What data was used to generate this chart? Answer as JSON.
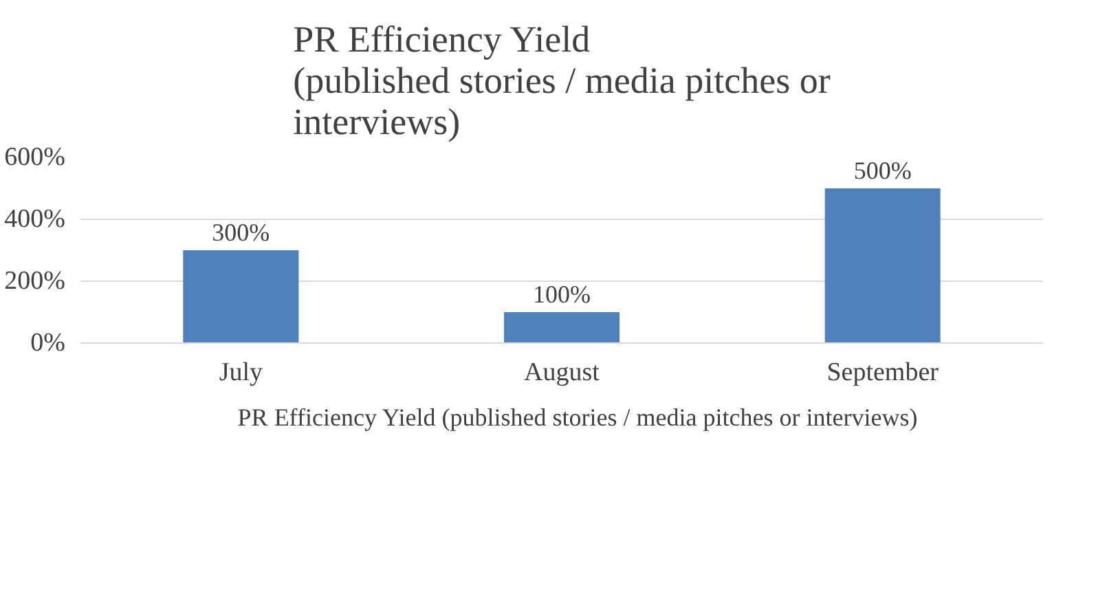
{
  "chart_data": {
    "type": "bar",
    "title": "PR Efficiency Yield\n(published stories / media pitches or\ninterviews)",
    "categories": [
      "July",
      "August",
      "September"
    ],
    "series": [
      {
        "name": "PR Efficiency Yield (published stories / media pitches or interviews)",
        "color": "#4f81bd",
        "values": [
          300,
          100,
          500
        ],
        "value_labels": [
          "300%",
          "100%",
          "500%"
        ]
      }
    ],
    "ylim": [
      0,
      600
    ],
    "yticks": [
      {
        "value": 0,
        "label": "0%"
      },
      {
        "value": 200,
        "label": "200%"
      },
      {
        "value": 400,
        "label": "400%"
      },
      {
        "value": 600,
        "label": "600%"
      }
    ],
    "grid": "y",
    "legend": "bottom"
  }
}
